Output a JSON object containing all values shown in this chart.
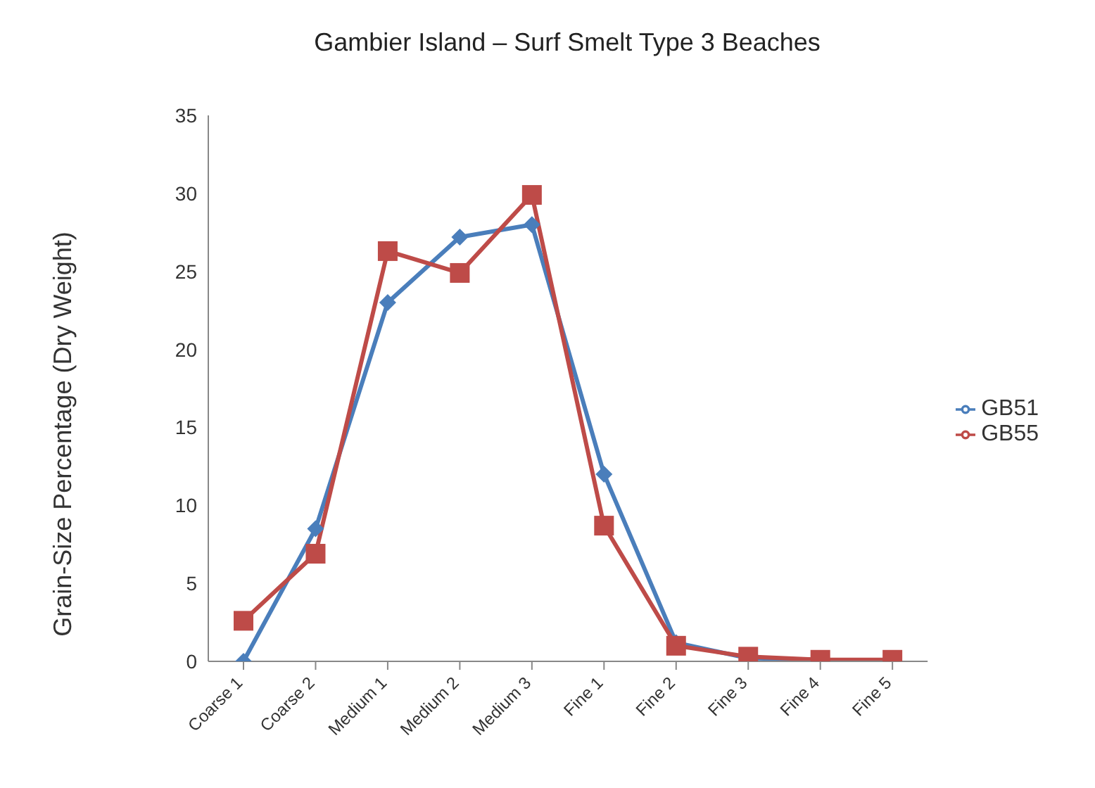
{
  "chart_data": {
    "type": "line",
    "title": "Gambier Island  – Surf Smelt Type 3 Beaches",
    "ylabel": "Grain-Size Percentage (Dry Weight)",
    "categories": [
      "Coarse 1",
      "Coarse 2",
      "Medium 1",
      "Medium 2",
      "Medium 3",
      "Fine 1",
      "Fine 2",
      "Fine 3",
      "Fine 4",
      "Fine 5"
    ],
    "series": [
      {
        "name": "GB51",
        "color": "#4a7ebb",
        "marker": "diamond",
        "values": [
          0,
          8.5,
          23,
          27.2,
          28,
          12,
          1.2,
          0.2,
          0.1,
          0
        ]
      },
      {
        "name": "GB55",
        "color": "#be4b48",
        "marker": "square",
        "values": [
          2.6,
          6.9,
          26.3,
          24.9,
          29.9,
          8.7,
          1.0,
          0.3,
          0.1,
          0.1
        ]
      }
    ],
    "ylim": [
      0,
      35
    ],
    "yticks": [
      0,
      5,
      10,
      15,
      20,
      25,
      30,
      35
    ],
    "grid": false,
    "legend": "right"
  }
}
